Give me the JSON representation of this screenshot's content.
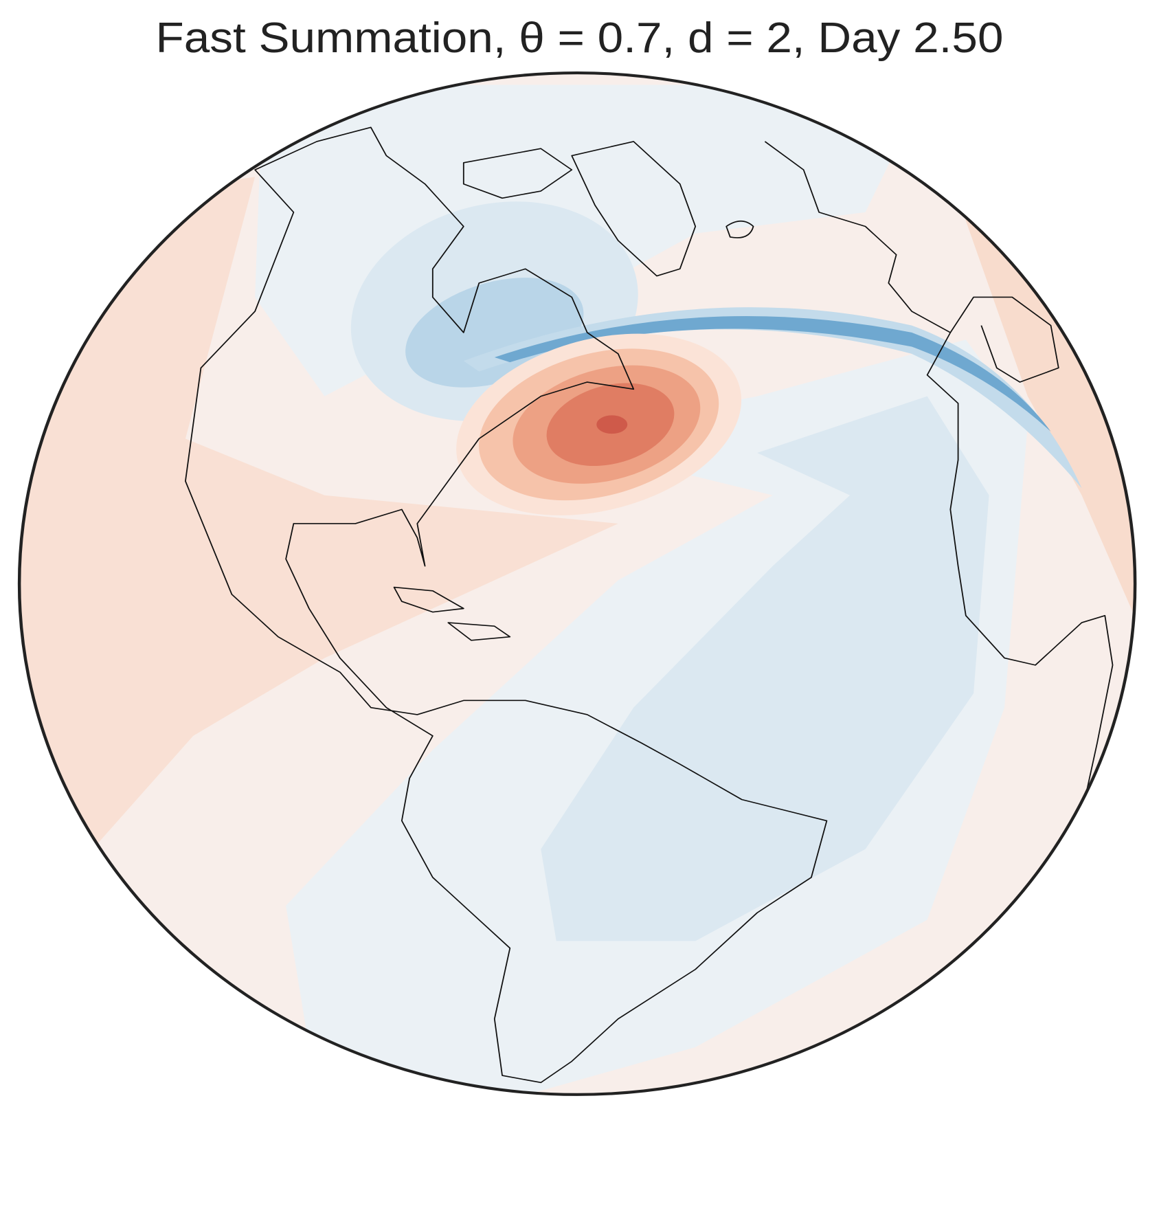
{
  "title": "Fast Summation, θ = 0.7, d = 2, Day 2.50"
}
